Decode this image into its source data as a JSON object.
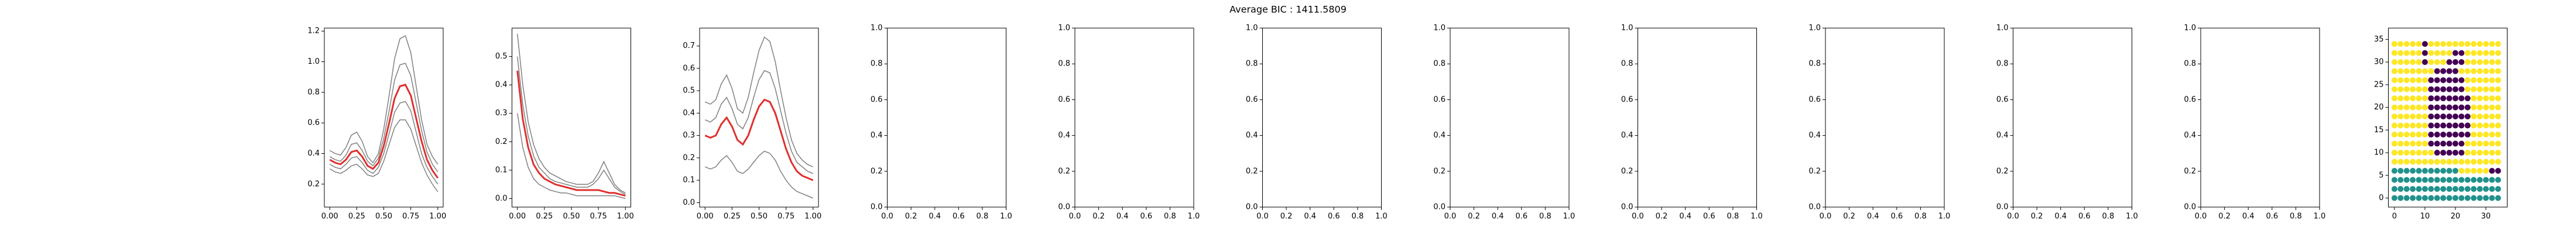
{
  "title": "Average BIC : 1411.5809",
  "chart_data": [
    {
      "type": "line",
      "x": [
        0,
        0.05,
        0.1,
        0.15,
        0.2,
        0.25,
        0.3,
        0.35,
        0.4,
        0.45,
        0.5,
        0.55,
        0.6,
        0.65,
        0.7,
        0.75,
        0.8,
        0.85,
        0.9,
        0.95,
        1
      ],
      "xlim": [
        -0.05,
        1.05
      ],
      "ylim": [
        0.05,
        1.22
      ],
      "xticks": [
        {
          "value": 0,
          "label": "0.00"
        },
        {
          "value": 0.25,
          "label": "0.25"
        },
        {
          "value": 0.5,
          "label": "0.50"
        },
        {
          "value": 0.75,
          "label": "0.75"
        },
        {
          "value": 1,
          "label": "1.00"
        }
      ],
      "yticks": [
        0.2,
        0.4,
        0.6,
        0.8,
        {
          "value": 1,
          "label": "1.0"
        },
        1.2
      ],
      "series": [
        {
          "color": "#808080",
          "values": [
            0.42,
            0.4,
            0.39,
            0.44,
            0.52,
            0.54,
            0.48,
            0.38,
            0.34,
            0.4,
            0.56,
            0.78,
            1.02,
            1.15,
            1.17,
            1.06,
            0.84,
            0.62,
            0.46,
            0.38,
            0.33
          ]
        },
        {
          "color": "#808080",
          "values": [
            0.38,
            0.36,
            0.35,
            0.39,
            0.46,
            0.47,
            0.42,
            0.35,
            0.32,
            0.37,
            0.5,
            0.68,
            0.88,
            0.98,
            0.99,
            0.91,
            0.73,
            0.55,
            0.41,
            0.33,
            0.28
          ]
        },
        {
          "color": "#808080",
          "values": [
            0.33,
            0.31,
            0.3,
            0.33,
            0.37,
            0.38,
            0.34,
            0.29,
            0.27,
            0.31,
            0.4,
            0.53,
            0.67,
            0.73,
            0.74,
            0.68,
            0.54,
            0.4,
            0.31,
            0.25,
            0.2
          ]
        },
        {
          "color": "#808080",
          "values": [
            0.3,
            0.28,
            0.27,
            0.29,
            0.32,
            0.33,
            0.3,
            0.26,
            0.25,
            0.27,
            0.35,
            0.46,
            0.57,
            0.62,
            0.62,
            0.56,
            0.45,
            0.34,
            0.26,
            0.2,
            0.15
          ]
        },
        {
          "color": "#e0302e",
          "values": [
            0.36,
            0.34,
            0.33,
            0.36,
            0.41,
            0.42,
            0.38,
            0.32,
            0.3,
            0.34,
            0.45,
            0.6,
            0.76,
            0.84,
            0.85,
            0.78,
            0.63,
            0.48,
            0.36,
            0.29,
            0.24
          ]
        }
      ]
    },
    {
      "type": "line",
      "x": [
        0,
        0.05,
        0.1,
        0.15,
        0.2,
        0.25,
        0.3,
        0.35,
        0.4,
        0.45,
        0.5,
        0.55,
        0.6,
        0.65,
        0.7,
        0.75,
        0.8,
        0.85,
        0.9,
        0.95,
        1
      ],
      "xlim": [
        -0.05,
        1.05
      ],
      "ylim": [
        -0.03,
        0.6
      ],
      "xticks": [
        {
          "value": 0,
          "label": "0.00"
        },
        {
          "value": 0.25,
          "label": "0.25"
        },
        {
          "value": 0.5,
          "label": "0.50"
        },
        {
          "value": 0.75,
          "label": "0.75"
        },
        {
          "value": 1,
          "label": "1.00"
        }
      ],
      "yticks": [
        {
          "value": 0,
          "label": "0.0"
        },
        0.1,
        0.2,
        0.3,
        0.4,
        0.5
      ],
      "series": [
        {
          "color": "#808080",
          "values": [
            0.58,
            0.4,
            0.27,
            0.19,
            0.14,
            0.11,
            0.09,
            0.08,
            0.07,
            0.06,
            0.055,
            0.05,
            0.05,
            0.05,
            0.06,
            0.09,
            0.13,
            0.09,
            0.05,
            0.03,
            0.02
          ]
        },
        {
          "color": "#808080",
          "values": [
            0.5,
            0.33,
            0.22,
            0.15,
            0.11,
            0.09,
            0.07,
            0.06,
            0.055,
            0.05,
            0.045,
            0.04,
            0.04,
            0.04,
            0.05,
            0.07,
            0.1,
            0.07,
            0.04,
            0.025,
            0.015
          ]
        },
        {
          "color": "#808080",
          "values": [
            0.3,
            0.18,
            0.11,
            0.07,
            0.05,
            0.04,
            0.03,
            0.025,
            0.02,
            0.02,
            0.015,
            0.01,
            0.01,
            0.01,
            0.01,
            0.01,
            0.01,
            0.01,
            0.01,
            0.005,
            0
          ]
        },
        {
          "color": "#e0302e",
          "values": [
            0.45,
            0.28,
            0.18,
            0.12,
            0.09,
            0.07,
            0.06,
            0.05,
            0.045,
            0.04,
            0.035,
            0.03,
            0.03,
            0.03,
            0.03,
            0.03,
            0.025,
            0.02,
            0.02,
            0.015,
            0.01
          ]
        }
      ]
    },
    {
      "type": "line",
      "x": [
        0,
        0.05,
        0.1,
        0.15,
        0.2,
        0.25,
        0.3,
        0.35,
        0.4,
        0.45,
        0.5,
        0.55,
        0.6,
        0.65,
        0.7,
        0.75,
        0.8,
        0.85,
        0.9,
        0.95,
        1
      ],
      "xlim": [
        -0.05,
        1.05
      ],
      "ylim": [
        -0.02,
        0.78
      ],
      "xticks": [
        {
          "value": 0,
          "label": "0.00"
        },
        {
          "value": 0.25,
          "label": "0.25"
        },
        {
          "value": 0.5,
          "label": "0.50"
        },
        {
          "value": 0.75,
          "label": "0.75"
        },
        {
          "value": 1,
          "label": "1.00"
        }
      ],
      "yticks": [
        {
          "value": 0,
          "label": "0.0"
        },
        0.1,
        0.2,
        0.3,
        0.4,
        0.5,
        0.6,
        0.7
      ],
      "series": [
        {
          "color": "#808080",
          "values": [
            0.45,
            0.44,
            0.46,
            0.53,
            0.57,
            0.51,
            0.42,
            0.4,
            0.47,
            0.58,
            0.68,
            0.74,
            0.72,
            0.63,
            0.5,
            0.38,
            0.28,
            0.22,
            0.19,
            0.17,
            0.16
          ]
        },
        {
          "color": "#808080",
          "values": [
            0.37,
            0.36,
            0.38,
            0.44,
            0.47,
            0.42,
            0.35,
            0.33,
            0.38,
            0.47,
            0.55,
            0.59,
            0.58,
            0.51,
            0.41,
            0.31,
            0.23,
            0.18,
            0.16,
            0.14,
            0.13
          ]
        },
        {
          "color": "#808080",
          "values": [
            0.16,
            0.15,
            0.16,
            0.19,
            0.21,
            0.18,
            0.14,
            0.13,
            0.15,
            0.18,
            0.21,
            0.23,
            0.22,
            0.19,
            0.14,
            0.1,
            0.07,
            0.05,
            0.04,
            0.03,
            0.02
          ]
        },
        {
          "color": "#e0302e",
          "values": [
            0.3,
            0.29,
            0.3,
            0.35,
            0.38,
            0.34,
            0.28,
            0.26,
            0.3,
            0.37,
            0.43,
            0.46,
            0.45,
            0.4,
            0.32,
            0.24,
            0.18,
            0.14,
            0.12,
            0.11,
            0.1
          ]
        }
      ]
    },
    {
      "type": "empty",
      "xlim": [
        0,
        1
      ],
      "ylim": [
        0,
        1
      ],
      "xticks": [
        {
          "value": 0,
          "label": "0.0"
        },
        0.2,
        0.4,
        0.6,
        0.8,
        {
          "value": 1,
          "label": "1.0"
        }
      ],
      "yticks": [
        {
          "value": 0,
          "label": "0.0"
        },
        0.2,
        0.4,
        0.6,
        0.8,
        {
          "value": 1,
          "label": "1.0"
        }
      ]
    },
    {
      "type": "empty",
      "xlim": [
        0,
        1
      ],
      "ylim": [
        0,
        1
      ],
      "xticks": [
        {
          "value": 0,
          "label": "0.0"
        },
        0.2,
        0.4,
        0.6,
        0.8,
        {
          "value": 1,
          "label": "1.0"
        }
      ],
      "yticks": [
        {
          "value": 0,
          "label": "0.0"
        },
        0.2,
        0.4,
        0.6,
        0.8,
        {
          "value": 1,
          "label": "1.0"
        }
      ]
    },
    {
      "type": "empty",
      "xlim": [
        0,
        1
      ],
      "ylim": [
        0,
        1
      ],
      "xticks": [
        {
          "value": 0,
          "label": "0.0"
        },
        0.2,
        0.4,
        0.6,
        0.8,
        {
          "value": 1,
          "label": "1.0"
        }
      ],
      "yticks": [
        {
          "value": 0,
          "label": "0.0"
        },
        0.2,
        0.4,
        0.6,
        0.8,
        {
          "value": 1,
          "label": "1.0"
        }
      ]
    },
    {
      "type": "empty",
      "xlim": [
        0,
        1
      ],
      "ylim": [
        0,
        1
      ],
      "xticks": [
        {
          "value": 0,
          "label": "0.0"
        },
        0.2,
        0.4,
        0.6,
        0.8,
        {
          "value": 1,
          "label": "1.0"
        }
      ],
      "yticks": [
        {
          "value": 0,
          "label": "0.0"
        },
        0.2,
        0.4,
        0.6,
        0.8,
        {
          "value": 1,
          "label": "1.0"
        }
      ]
    },
    {
      "type": "empty",
      "xlim": [
        0,
        1
      ],
      "ylim": [
        0,
        1
      ],
      "xticks": [
        {
          "value": 0,
          "label": "0.0"
        },
        0.2,
        0.4,
        0.6,
        0.8,
        {
          "value": 1,
          "label": "1.0"
        }
      ],
      "yticks": [
        {
          "value": 0,
          "label": "0.0"
        },
        0.2,
        0.4,
        0.6,
        0.8,
        {
          "value": 1,
          "label": "1.0"
        }
      ]
    },
    {
      "type": "empty",
      "xlim": [
        0,
        1
      ],
      "ylim": [
        0,
        1
      ],
      "xticks": [
        {
          "value": 0,
          "label": "0.0"
        },
        0.2,
        0.4,
        0.6,
        0.8,
        {
          "value": 1,
          "label": "1.0"
        }
      ],
      "yticks": [
        {
          "value": 0,
          "label": "0.0"
        },
        0.2,
        0.4,
        0.6,
        0.8,
        {
          "value": 1,
          "label": "1.0"
        }
      ]
    },
    {
      "type": "empty",
      "xlim": [
        0,
        1
      ],
      "ylim": [
        0,
        1
      ],
      "xticks": [
        {
          "value": 0,
          "label": "0.0"
        },
        0.2,
        0.4,
        0.6,
        0.8,
        {
          "value": 1,
          "label": "1.0"
        }
      ],
      "yticks": [
        {
          "value": 0,
          "label": "0.0"
        },
        0.2,
        0.4,
        0.6,
        0.8,
        {
          "value": 1,
          "label": "1.0"
        }
      ]
    },
    {
      "type": "empty",
      "xlim": [
        0,
        1
      ],
      "ylim": [
        0,
        1
      ],
      "xticks": [
        {
          "value": 0,
          "label": "0.0"
        },
        0.2,
        0.4,
        0.6,
        0.8,
        {
          "value": 1,
          "label": "1.0"
        }
      ],
      "yticks": [
        {
          "value": 0,
          "label": "0.0"
        },
        0.2,
        0.4,
        0.6,
        0.8,
        {
          "value": 1,
          "label": "1.0"
        }
      ]
    },
    {
      "type": "scatter",
      "xlim": [
        -2,
        37
      ],
      "ylim": [
        -2,
        37.5
      ],
      "xticks": [
        0,
        10,
        20,
        30
      ],
      "yticks": [
        0,
        5,
        10,
        15,
        20,
        25,
        30,
        35
      ],
      "colors": [
        "#440154",
        "#21918c",
        "#fde725"
      ],
      "x": [
        0,
        2,
        4,
        6,
        8,
        10,
        12,
        14,
        16,
        18,
        20,
        22,
        24,
        26,
        28,
        30,
        32,
        34
      ],
      "y": [
        0,
        2,
        4,
        6,
        8,
        10,
        12,
        14,
        16,
        18,
        20,
        22,
        24,
        26,
        28,
        30,
        32,
        34
      ],
      "values": [
        [
          1,
          1,
          1,
          1,
          1,
          1,
          1,
          1,
          1,
          1,
          1,
          1,
          1,
          1,
          1,
          1,
          1,
          1
        ],
        [
          1,
          1,
          1,
          1,
          1,
          1,
          1,
          1,
          1,
          1,
          1,
          1,
          1,
          1,
          1,
          1,
          1,
          1
        ],
        [
          1,
          1,
          1,
          1,
          1,
          1,
          1,
          1,
          1,
          1,
          1,
          1,
          1,
          1,
          1,
          1,
          1,
          1
        ],
        [
          1,
          1,
          1,
          1,
          1,
          1,
          1,
          1,
          1,
          1,
          1,
          2,
          2,
          2,
          2,
          2,
          0,
          0
        ],
        [
          2,
          2,
          2,
          2,
          2,
          2,
          2,
          2,
          2,
          2,
          2,
          2,
          2,
          2,
          2,
          2,
          2,
          2
        ],
        [
          2,
          2,
          2,
          2,
          2,
          2,
          2,
          0,
          0,
          0,
          0,
          0,
          2,
          2,
          2,
          2,
          2,
          2
        ],
        [
          2,
          2,
          2,
          2,
          2,
          2,
          0,
          0,
          0,
          0,
          0,
          0,
          2,
          2,
          2,
          2,
          2,
          2
        ],
        [
          2,
          2,
          2,
          2,
          2,
          2,
          0,
          0,
          0,
          0,
          0,
          0,
          0,
          2,
          2,
          2,
          2,
          2
        ],
        [
          2,
          2,
          2,
          2,
          2,
          2,
          0,
          0,
          0,
          0,
          0,
          0,
          0,
          2,
          2,
          2,
          2,
          2
        ],
        [
          2,
          2,
          2,
          2,
          2,
          2,
          0,
          0,
          0,
          0,
          0,
          0,
          0,
          2,
          2,
          2,
          2,
          2
        ],
        [
          2,
          2,
          2,
          2,
          2,
          2,
          0,
          0,
          0,
          0,
          0,
          0,
          0,
          2,
          2,
          2,
          2,
          2
        ],
        [
          2,
          2,
          2,
          2,
          2,
          2,
          0,
          0,
          0,
          0,
          0,
          0,
          0,
          2,
          2,
          2,
          2,
          2
        ],
        [
          2,
          2,
          2,
          2,
          2,
          2,
          0,
          0,
          0,
          0,
          0,
          0,
          2,
          2,
          2,
          2,
          2,
          2
        ],
        [
          2,
          2,
          2,
          2,
          2,
          2,
          0,
          0,
          0,
          0,
          0,
          0,
          2,
          2,
          2,
          2,
          2,
          2
        ],
        [
          2,
          2,
          2,
          2,
          2,
          2,
          2,
          0,
          0,
          0,
          0,
          2,
          2,
          2,
          2,
          2,
          2,
          2
        ],
        [
          2,
          2,
          2,
          2,
          2,
          0,
          2,
          2,
          2,
          0,
          0,
          0,
          2,
          2,
          2,
          2,
          2,
          2
        ],
        [
          2,
          2,
          2,
          2,
          2,
          0,
          2,
          2,
          2,
          2,
          0,
          0,
          2,
          2,
          2,
          2,
          2,
          2
        ],
        [
          2,
          2,
          2,
          2,
          2,
          0,
          2,
          2,
          2,
          2,
          2,
          2,
          2,
          2,
          2,
          2,
          2,
          2
        ]
      ]
    }
  ]
}
